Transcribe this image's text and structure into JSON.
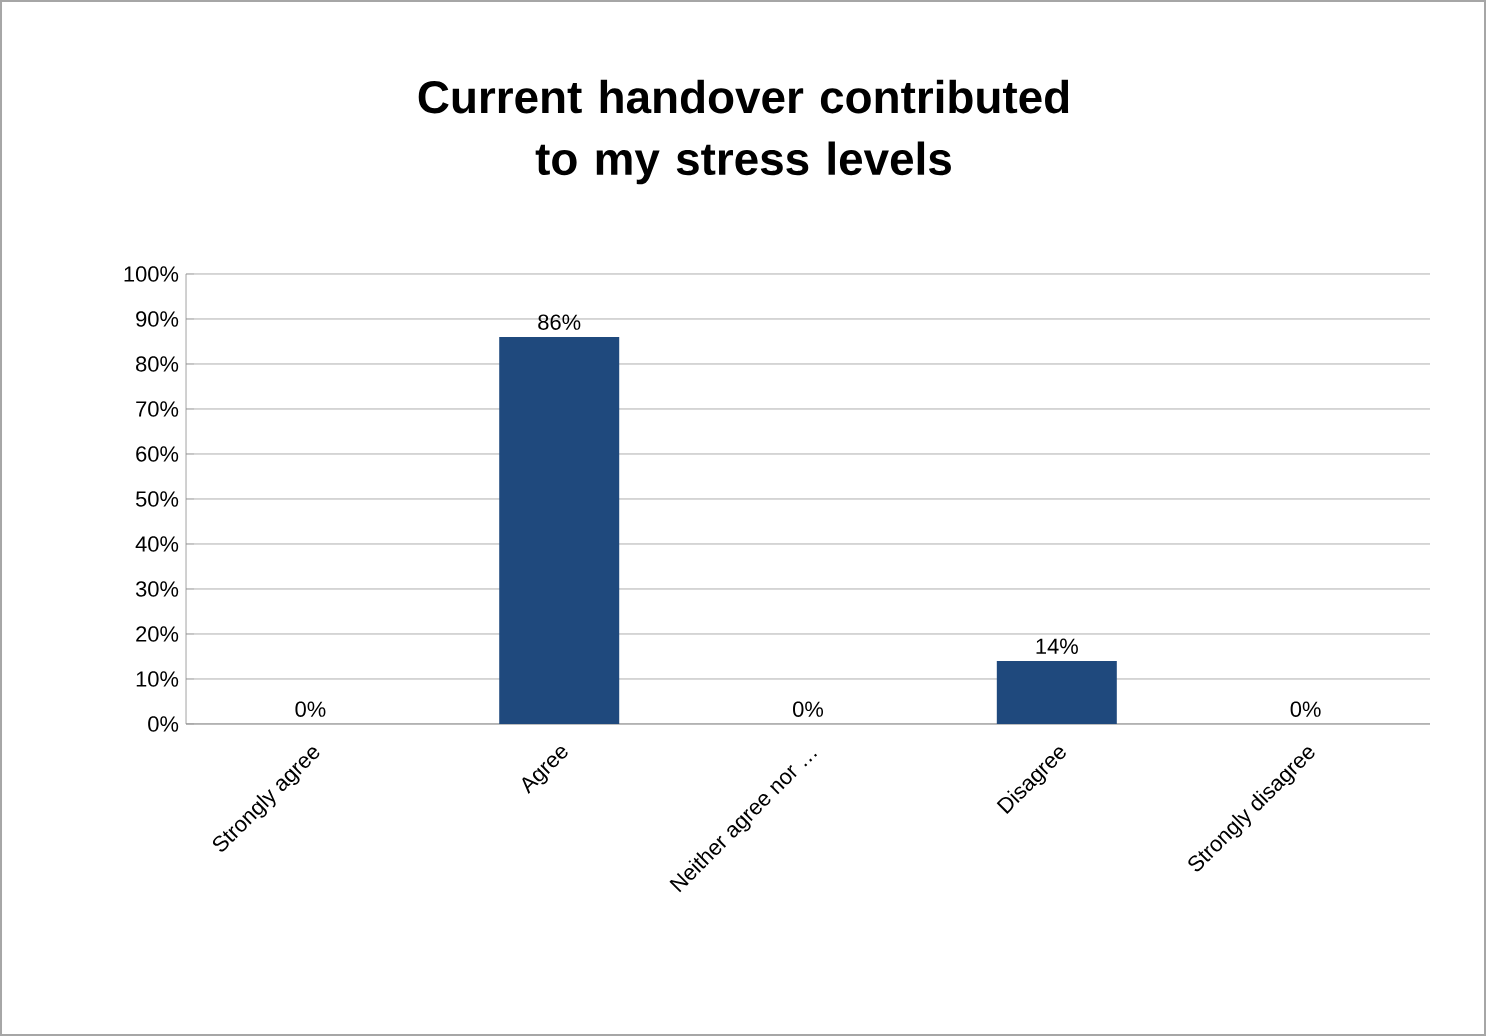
{
  "chart_data": {
    "type": "bar",
    "title": "Current handover contributed to my stress levels",
    "categories": [
      "Strongly agree",
      "Agree",
      "Neither agree nor …",
      "Disagree",
      "Strongly disagree"
    ],
    "values": [
      0,
      86,
      0,
      14,
      0
    ],
    "color": "#1f497d",
    "value_labels": [
      "0%",
      "86%",
      "0%",
      "14%",
      "0%"
    ],
    "ylim": [
      0,
      100
    ],
    "yticks": [
      {
        "value": 0,
        "label": "0%"
      },
      {
        "value": 10,
        "label": "10%"
      },
      {
        "value": 20,
        "label": "20%"
      },
      {
        "value": 30,
        "label": "30%"
      },
      {
        "value": 40,
        "label": "40%"
      },
      {
        "value": 50,
        "label": "50%"
      },
      {
        "value": 60,
        "label": "60%"
      },
      {
        "value": 70,
        "label": "70%"
      },
      {
        "value": 80,
        "label": "80%"
      },
      {
        "value": 90,
        "label": "90%"
      },
      {
        "value": 100,
        "label": "100%"
      }
    ],
    "grid": "y"
  }
}
